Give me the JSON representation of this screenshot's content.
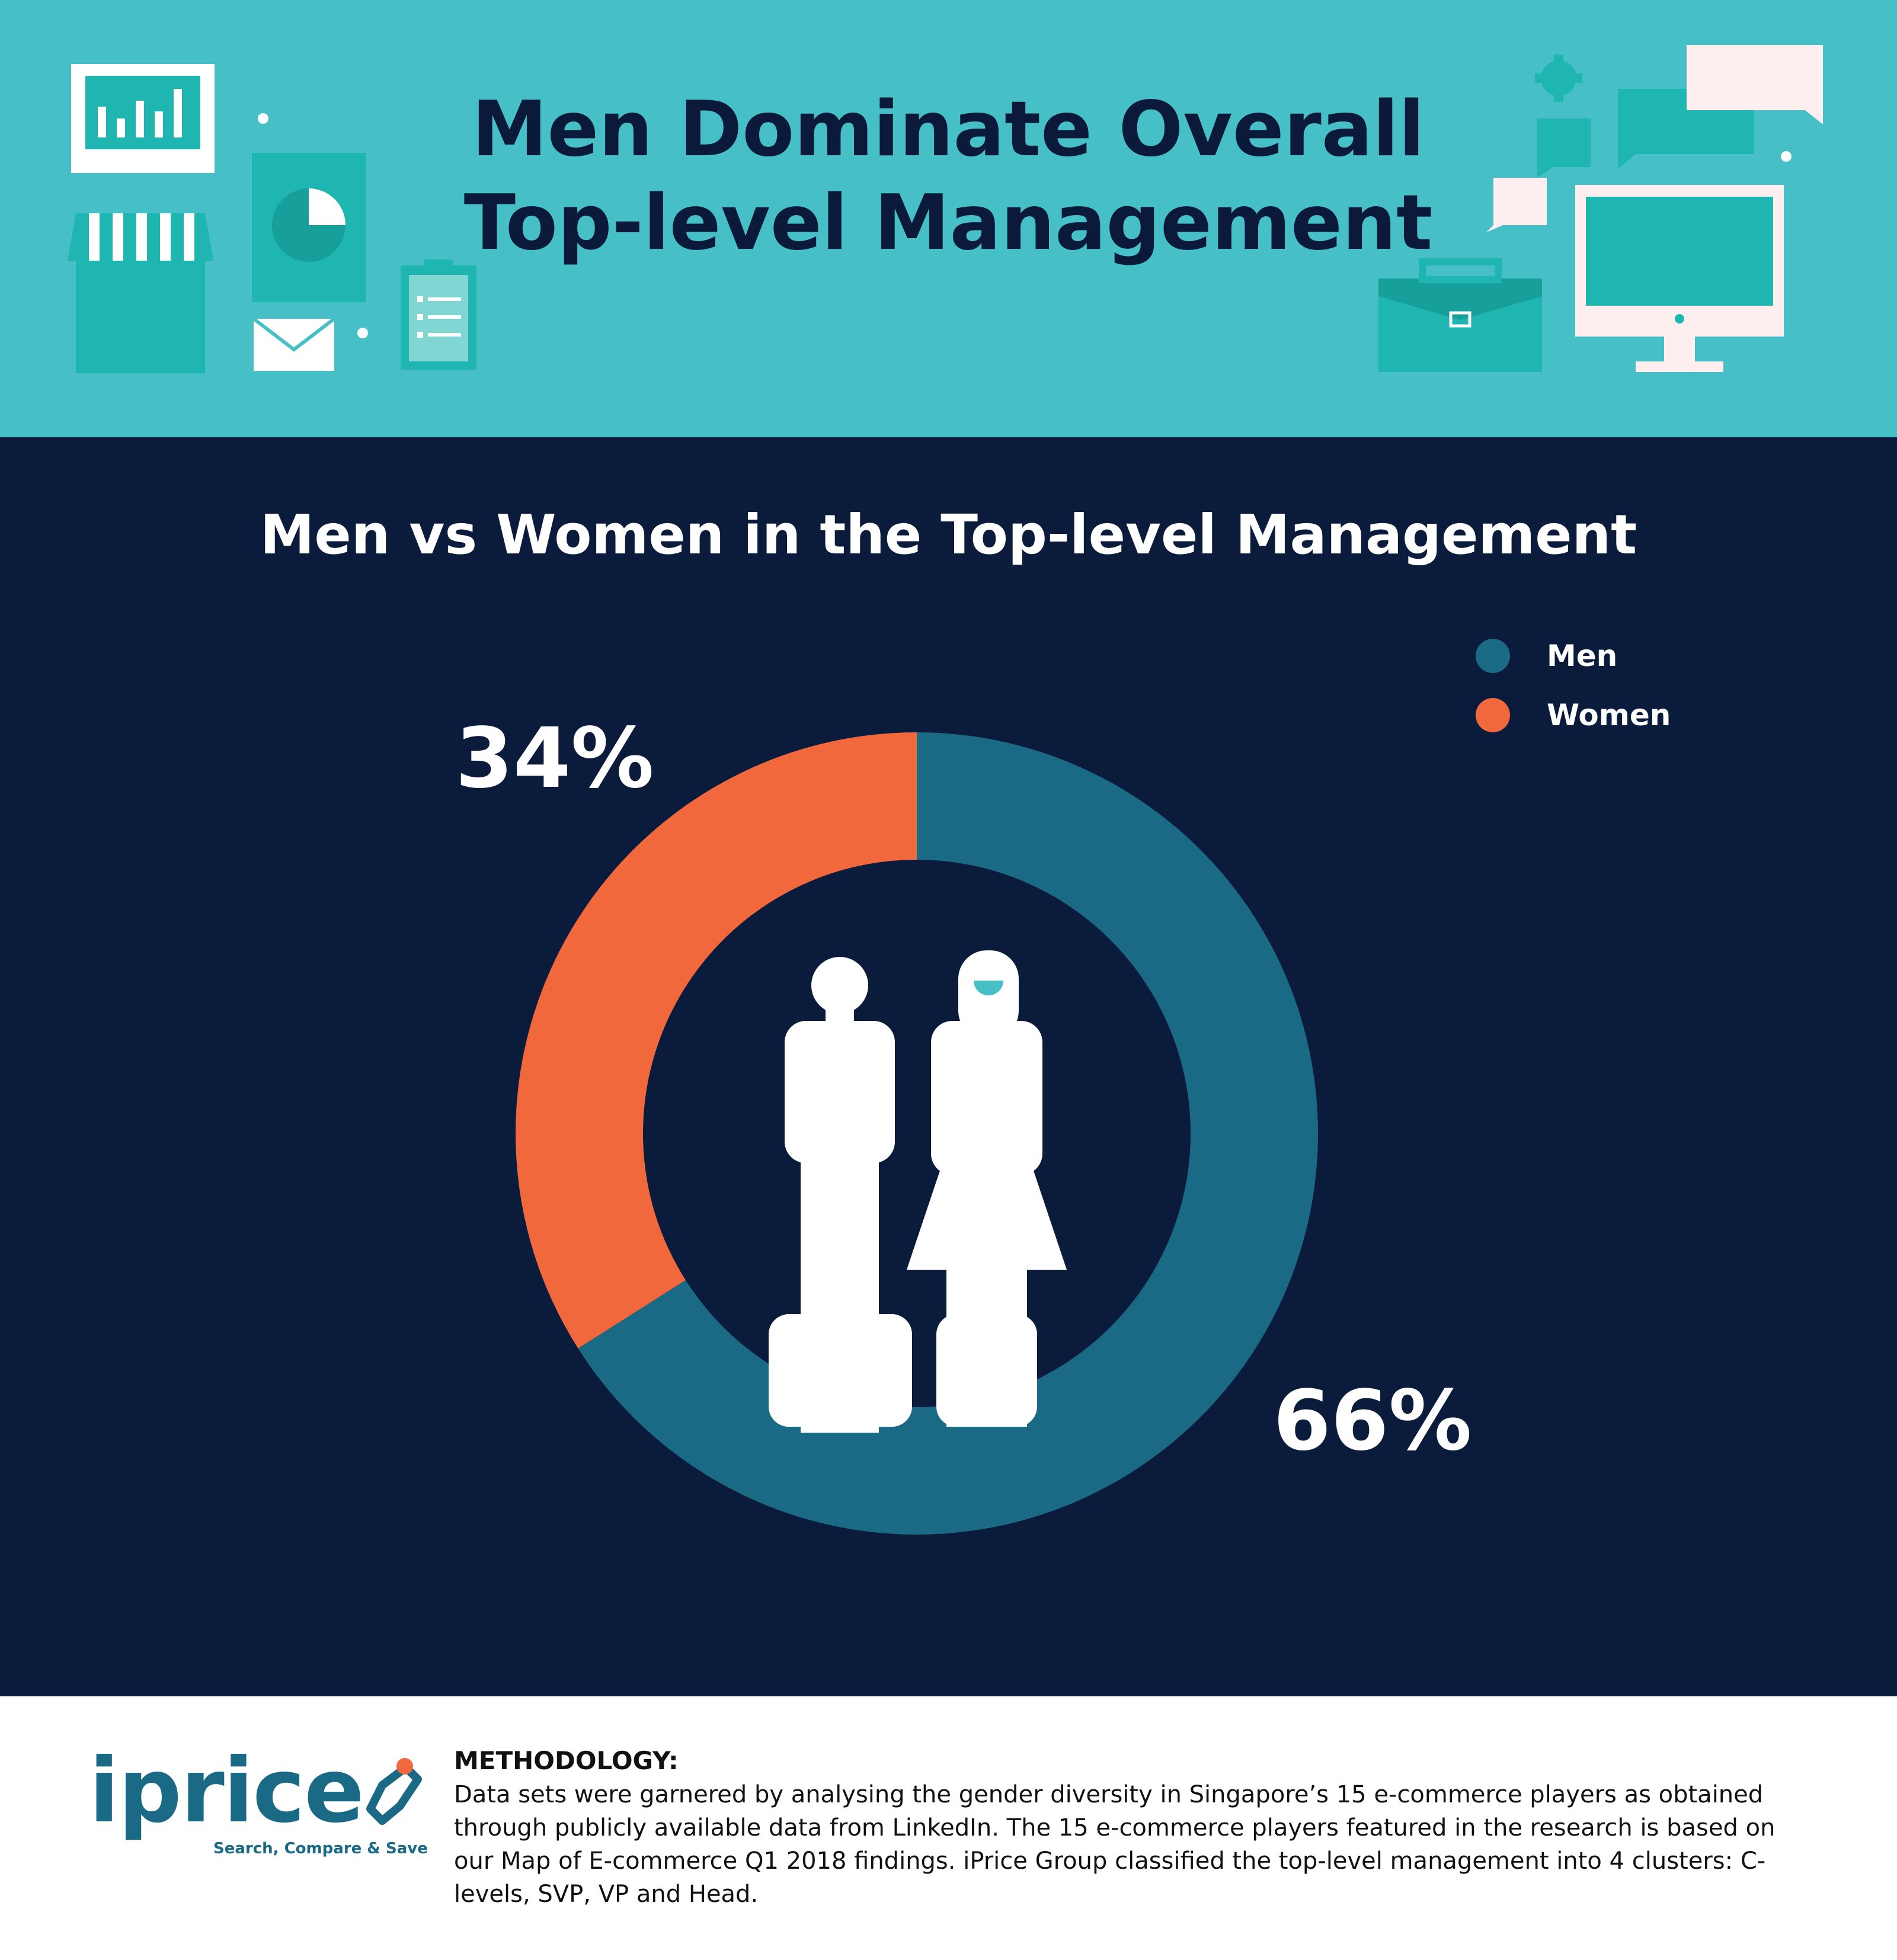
{
  "header": {
    "title_line1": "Men Dominate Overall",
    "title_line2": "Top-level Management"
  },
  "chart_data": {
    "type": "pie",
    "title": "Men vs Women in the Top-level Management",
    "categories": [
      "Men",
      "Women"
    ],
    "values": [
      66,
      34
    ],
    "labels": [
      "66%",
      "34%"
    ],
    "colors": [
      "#1a6a86",
      "#f2683d"
    ],
    "legend_position": "top-right",
    "legend": [
      "Men",
      "Women"
    ]
  },
  "icons": {
    "center": "men-and-women-icon",
    "header_left": [
      "bar-chart-icon",
      "store-icon",
      "pie-chart-document-icon",
      "envelope-icon",
      "clipboard-icon"
    ],
    "header_right": [
      "gear-icon",
      "chat-bubble-icon",
      "briefcase-icon",
      "desktop-monitor-icon"
    ]
  },
  "footer": {
    "logo_text": "iprice",
    "logo_tagline": "Search, Compare & Save",
    "methodology_heading": "METHODOLOGY:",
    "methodology_body": "Data sets were garnered by analysing the gender diversity in Singapore’s 15 e-commerce players as obtained through publicly available data from LinkedIn. The 15 e-commerce players featured in the research is based on our Map of E-commerce Q1 2018 findings. iPrice Group classified the top-level management into 4 clusters: C-levels, SVP, VP and Head."
  }
}
